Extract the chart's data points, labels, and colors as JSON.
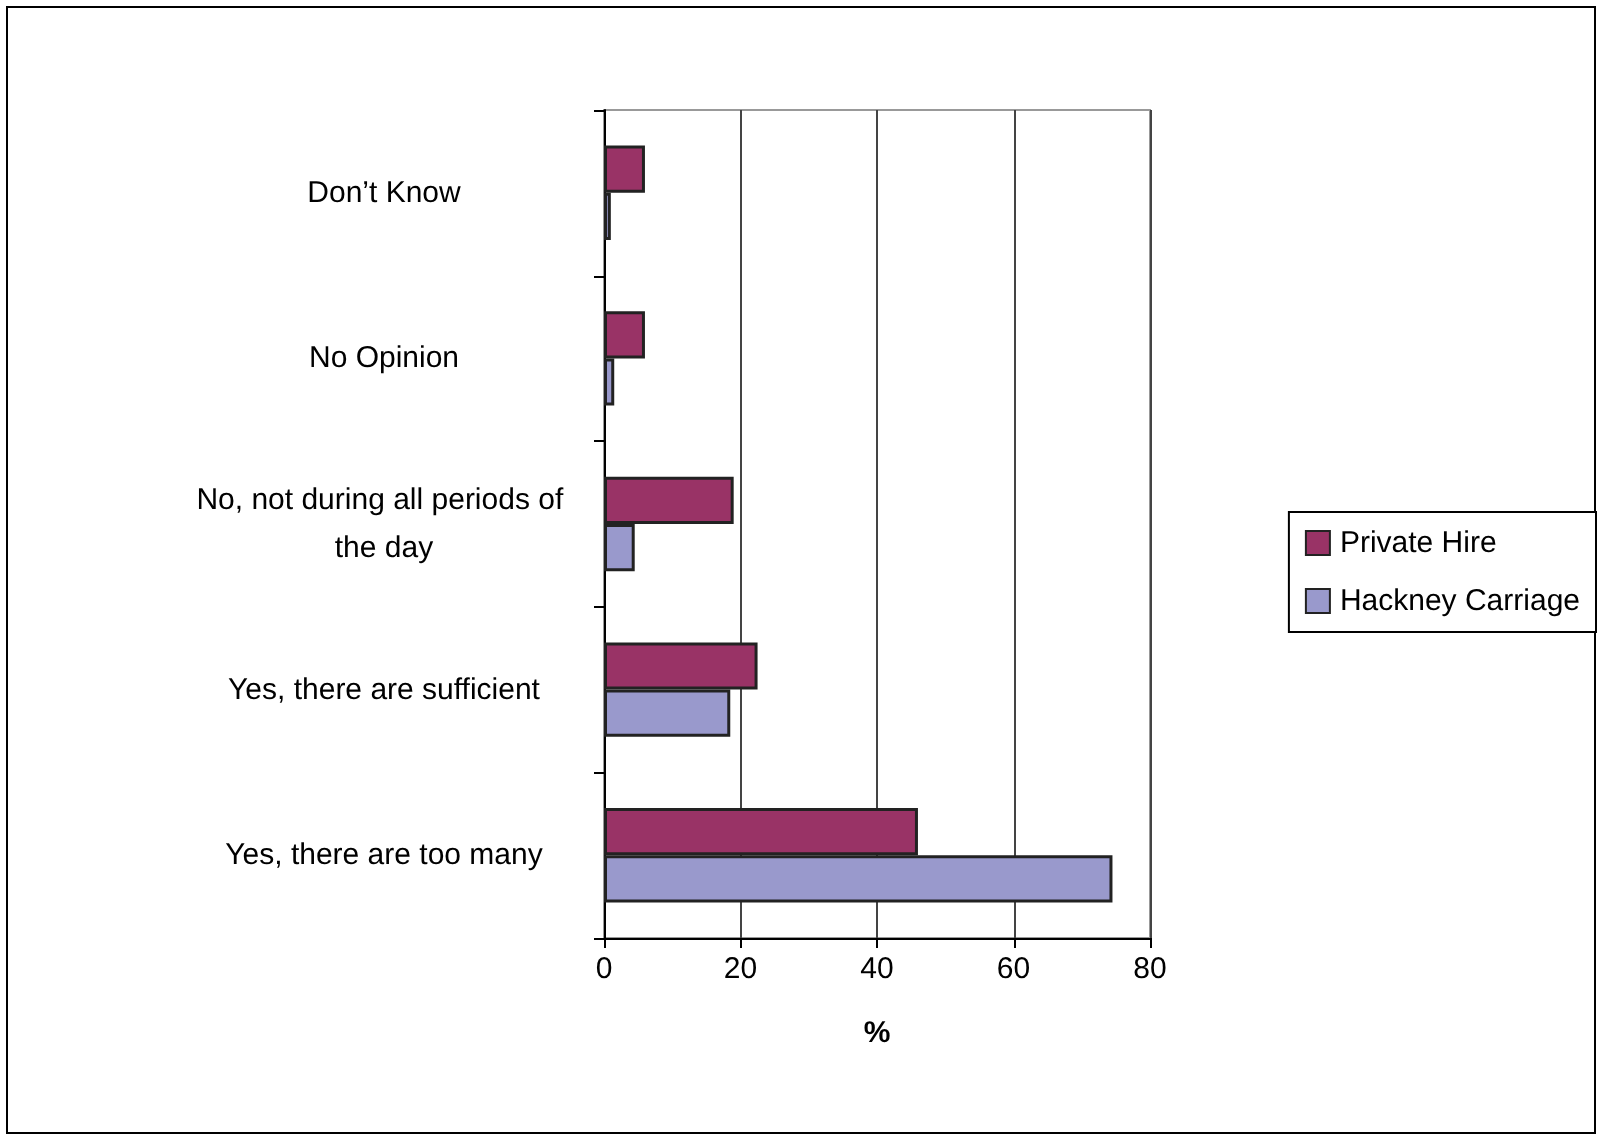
{
  "chart_data": {
    "type": "bar",
    "orientation": "horizontal",
    "xlabel": "%",
    "categories": [
      "Don’t Know",
      "No Opinion",
      "No, not during all periods of the day",
      "Yes, there are sufficient",
      "Yes, there are too many"
    ],
    "series": [
      {
        "name": "Private Hire",
        "color": "#993366",
        "values": [
          6,
          6,
          19,
          22.5,
          46
        ]
      },
      {
        "name": "Hackney Carriage",
        "color": "#9999cc",
        "values": [
          1,
          1.5,
          4.5,
          18.5,
          74.5
        ]
      }
    ],
    "xlim": [
      0,
      80
    ],
    "xticks": [
      0,
      20,
      40,
      60,
      80
    ],
    "grid": "x",
    "legend": "right"
  }
}
